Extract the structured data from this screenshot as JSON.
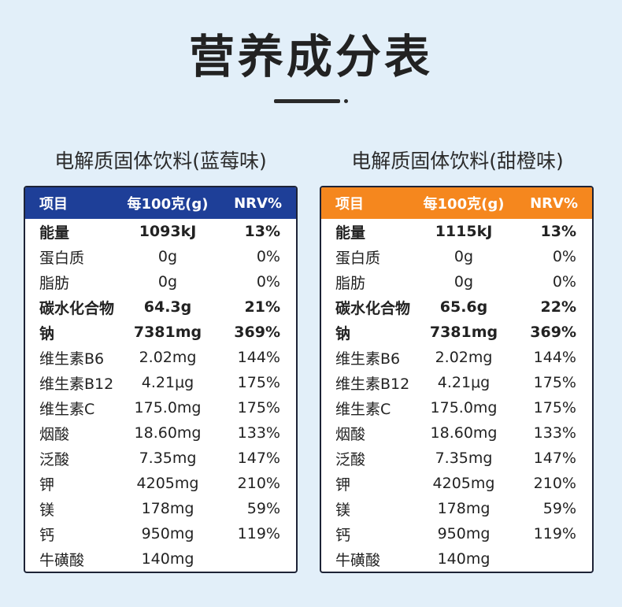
{
  "page": {
    "title": "营养成分表"
  },
  "tables": [
    {
      "caption": "电解质固体饮料(蓝莓味)",
      "headers": {
        "item": "项目",
        "amount": "每100克(g)",
        "nrv": "NRV%"
      },
      "header_color": "#1e3f98",
      "rows": [
        {
          "item": "能量",
          "amount": "1093kJ",
          "nrv": "13%"
        },
        {
          "item": "蛋白质",
          "amount": "0g",
          "nrv": "0%"
        },
        {
          "item": "脂肪",
          "amount": "0g",
          "nrv": "0%"
        },
        {
          "item": "碳水化合物",
          "amount": "64.3g",
          "nrv": "21%"
        },
        {
          "item": "钠",
          "amount": "7381mg",
          "nrv": "369%"
        },
        {
          "item": "维生素B6",
          "amount": "2.02mg",
          "nrv": "144%"
        },
        {
          "item": "维生素B12",
          "amount": "4.21μg",
          "nrv": "175%"
        },
        {
          "item": "维生素C",
          "amount": "175.0mg",
          "nrv": "175%"
        },
        {
          "item": "烟酸",
          "amount": "18.60mg",
          "nrv": "133%"
        },
        {
          "item": "泛酸",
          "amount": "7.35mg",
          "nrv": "147%"
        },
        {
          "item": "钾",
          "amount": "4205mg",
          "nrv": "210%"
        },
        {
          "item": "镁",
          "amount": "178mg",
          "nrv": "59%"
        },
        {
          "item": "钙",
          "amount": "950mg",
          "nrv": "119%"
        },
        {
          "item": "牛磺酸",
          "amount": "140mg",
          "nrv": ""
        }
      ]
    },
    {
      "caption": "电解质固体饮料(甜橙味)",
      "headers": {
        "item": "项目",
        "amount": "每100克(g)",
        "nrv": "NRV%"
      },
      "header_color": "#f5871e",
      "rows": [
        {
          "item": "能量",
          "amount": "1115kJ",
          "nrv": "13%"
        },
        {
          "item": "蛋白质",
          "amount": "0g",
          "nrv": "0%"
        },
        {
          "item": "脂肪",
          "amount": "0g",
          "nrv": "0%"
        },
        {
          "item": "碳水化合物",
          "amount": "65.6g",
          "nrv": "22%"
        },
        {
          "item": "钠",
          "amount": "7381mg",
          "nrv": "369%"
        },
        {
          "item": "维生素B6",
          "amount": "2.02mg",
          "nrv": "144%"
        },
        {
          "item": "维生素B12",
          "amount": "4.21μg",
          "nrv": "175%"
        },
        {
          "item": "维生素C",
          "amount": "175.0mg",
          "nrv": "175%"
        },
        {
          "item": "烟酸",
          "amount": "18.60mg",
          "nrv": "133%"
        },
        {
          "item": "泛酸",
          "amount": "7.35mg",
          "nrv": "147%"
        },
        {
          "item": "钾",
          "amount": "4205mg",
          "nrv": "210%"
        },
        {
          "item": "镁",
          "amount": "178mg",
          "nrv": "59%"
        },
        {
          "item": "钙",
          "amount": "950mg",
          "nrv": "119%"
        },
        {
          "item": "牛磺酸",
          "amount": "140mg",
          "nrv": ""
        }
      ]
    }
  ]
}
